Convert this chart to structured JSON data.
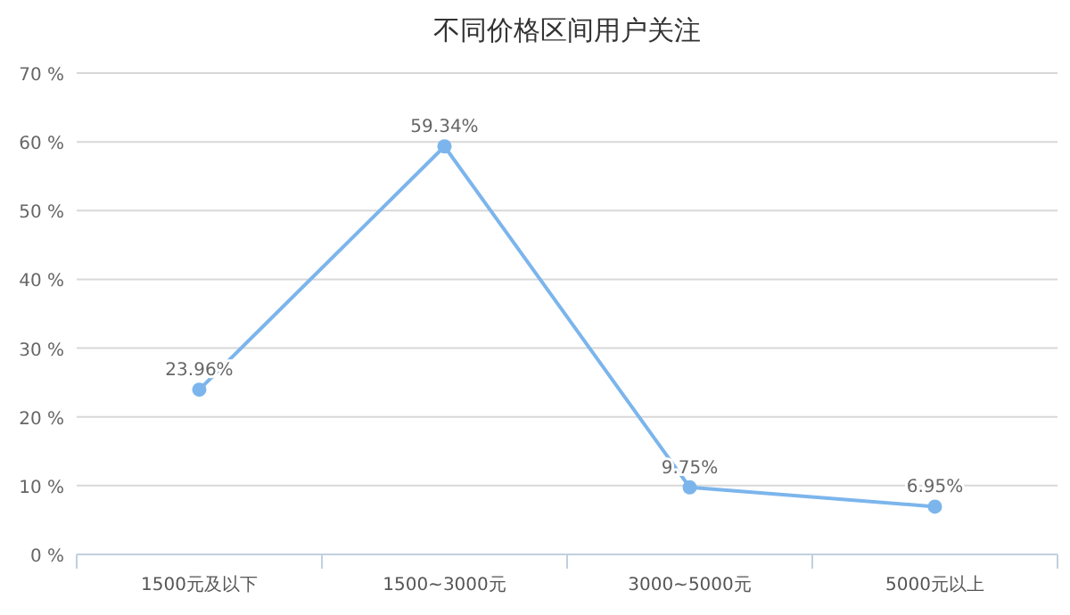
{
  "chart_data": {
    "type": "line",
    "title": "不同价格区间用户关注",
    "categories": [
      "1500元及以下",
      "1500~3000元",
      "3000~5000元",
      "5000元以上"
    ],
    "series": [
      {
        "color": "#7cb5ec",
        "values": [
          23.96,
          59.34,
          9.75,
          6.95
        ],
        "value_labels": [
          "23.96%",
          "59.34%",
          "9.75%",
          "6.95%"
        ]
      }
    ],
    "ylim": [
      0,
      70
    ],
    "yticks": [
      {
        "value": 0,
        "label": "0 %"
      },
      {
        "value": 10,
        "label": "10 %"
      },
      {
        "value": 20,
        "label": "20 %"
      },
      {
        "value": 30,
        "label": "30 %"
      },
      {
        "value": 40,
        "label": "40 %"
      },
      {
        "value": 50,
        "label": "50 %"
      },
      {
        "value": 60,
        "label": "60 %"
      },
      {
        "value": 70,
        "label": "70 %"
      }
    ],
    "grid": "y",
    "marker": "circle",
    "line_style": "solid"
  }
}
